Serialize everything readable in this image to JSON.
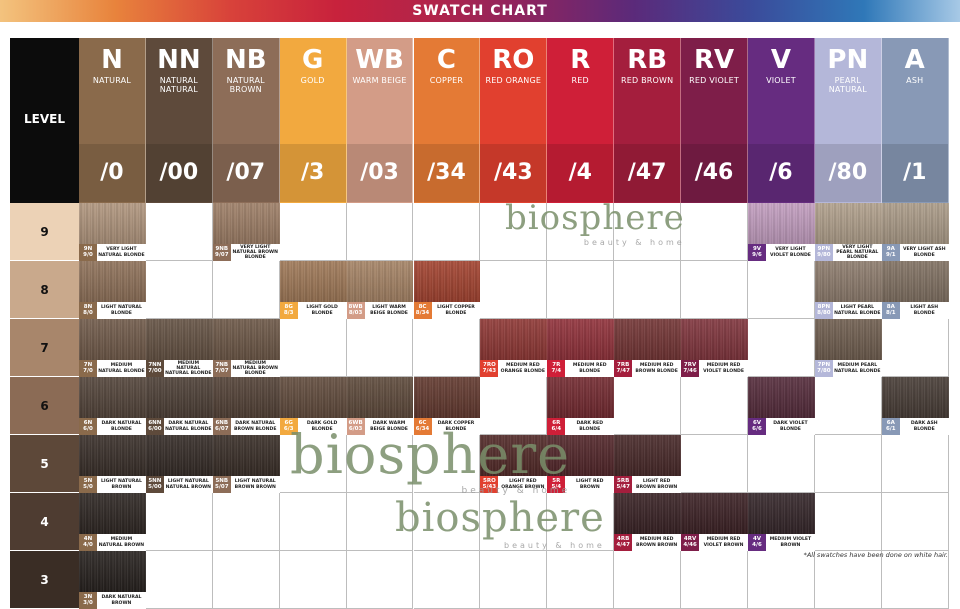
{
  "title": "SWATCH CHART",
  "level_header": "LEVEL",
  "footnote": "*All swatches have been done on white hair.",
  "watermark": {
    "brand": "biosphere",
    "sub": "beauty & home"
  },
  "columns": [
    {
      "code": "N",
      "name": "NATURAL",
      "num": "/0",
      "color": "#8a6a4b"
    },
    {
      "code": "NN",
      "name": "NATURAL NATURAL",
      "num": "/00",
      "color": "#5e4a3b"
    },
    {
      "code": "NB",
      "name": "NATURAL BROWN",
      "num": "/07",
      "color": "#8d6d58"
    },
    {
      "code": "G",
      "name": "GOLD",
      "num": "/3",
      "color": "#f2a93f"
    },
    {
      "code": "WB",
      "name": "WARM BEIGE",
      "num": "/03",
      "color": "#d39c87"
    },
    {
      "code": "C",
      "name": "COPPER",
      "num": "/34",
      "color": "#e47a35"
    },
    {
      "code": "RO",
      "name": "RED ORANGE",
      "num": "/43",
      "color": "#e1402f"
    },
    {
      "code": "R",
      "name": "RED",
      "num": "/4",
      "color": "#cf1f38"
    },
    {
      "code": "RB",
      "name": "RED BROWN",
      "num": "/47",
      "color": "#a41e3d"
    },
    {
      "code": "RV",
      "name": "RED VIOLET",
      "num": "/46",
      "color": "#7e1e49"
    },
    {
      "code": "V",
      "name": "VIOLET",
      "num": "/6",
      "color": "#662c80"
    },
    {
      "code": "PN",
      "name": "PEARL NATURAL",
      "num": "/80",
      "color": "#b4b7d9"
    },
    {
      "code": "A",
      "name": "ASH",
      "num": "/1",
      "color": "#8899b6"
    }
  ],
  "levels": [
    {
      "label": "9",
      "color": "#ecd2b6"
    },
    {
      "label": "8",
      "color": "#c9a98c"
    },
    {
      "label": "7",
      "color": "#a8866b"
    },
    {
      "label": "6",
      "color": "#8b6b55"
    },
    {
      "label": "5",
      "color": "#5d4839"
    },
    {
      "label": "4",
      "color": "#4e3c31"
    },
    {
      "label": "3",
      "color": "#3a2d25"
    }
  ],
  "swatches": [
    {
      "level": 0,
      "col": 0,
      "code": "9N",
      "num": "9/0",
      "label": "VERY LIGHT NATURAL BLONDE",
      "color": "#b09379"
    },
    {
      "level": 0,
      "col": 2,
      "code": "9NB",
      "num": "9/07",
      "label": "VERY LIGHT NATURAL BROWN BLONDE",
      "color": "#9c7a60"
    },
    {
      "level": 0,
      "col": 10,
      "code": "9V",
      "num": "9/6",
      "label": "VERY LIGHT VIOLET BLONDE",
      "color": "#c49cc1"
    },
    {
      "level": 0,
      "col": 11,
      "code": "9PN",
      "num": "9/80",
      "label": "VERY LIGHT PEARL NATURAL BLONDE",
      "color": "#b19f89"
    },
    {
      "level": 0,
      "col": 12,
      "code": "9A",
      "num": "9/1",
      "label": "VERY LIGHT ASH BLONDE",
      "color": "#ab9a85"
    },
    {
      "level": 1,
      "col": 0,
      "code": "8N",
      "num": "8/0",
      "label": "LIGHT NATURAL BLONDE",
      "color": "#8c6c52"
    },
    {
      "level": 1,
      "col": 3,
      "code": "8G",
      "num": "8/3",
      "label": "LIGHT GOLD BLONDE",
      "color": "#9e7450"
    },
    {
      "level": 1,
      "col": 4,
      "code": "8WB",
      "num": "8/03",
      "label": "LIGHT WARM BEIGE BLONDE",
      "color": "#a5805f"
    },
    {
      "level": 1,
      "col": 5,
      "code": "8C",
      "num": "8/34",
      "label": "LIGHT COPPER BLONDE",
      "color": "#a23a25"
    },
    {
      "level": 1,
      "col": 11,
      "code": "8PN",
      "num": "8/80",
      "label": "LIGHT PEARL NATURAL BLONDE",
      "color": "#8b7868"
    },
    {
      "level": 1,
      "col": 12,
      "code": "8A",
      "num": "8/1",
      "label": "LIGHT ASH BLONDE",
      "color": "#7d6c5c"
    },
    {
      "level": 2,
      "col": 0,
      "code": "7N",
      "num": "7/0",
      "label": "MEDIUM NATURAL BLONDE",
      "color": "#6b5341"
    },
    {
      "level": 2,
      "col": 1,
      "code": "7NN",
      "num": "7/00",
      "label": "MEDIUM NATURAL NATURAL BLONDE",
      "color": "#5e4a3a"
    },
    {
      "level": 2,
      "col": 2,
      "code": "7NB",
      "num": "7/07",
      "label": "MEDIUM NATURAL BROWN BLONDE",
      "color": "#67503e"
    },
    {
      "level": 2,
      "col": 6,
      "code": "7RO",
      "num": "7/43",
      "label": "MEDIUM RED ORANGE BLONDE",
      "color": "#8c2d2a"
    },
    {
      "level": 2,
      "col": 7,
      "code": "7R",
      "num": "7/4",
      "label": "MEDIUM RED BLONDE",
      "color": "#8e2630"
    },
    {
      "level": 2,
      "col": 8,
      "code": "7RB",
      "num": "7/47",
      "label": "MEDIUM RED BROWN BLONDE",
      "color": "#6e2a2a"
    },
    {
      "level": 2,
      "col": 9,
      "code": "7RV",
      "num": "7/46",
      "label": "MEDIUM RED VIOLET BLONDE",
      "color": "#7c2a33"
    },
    {
      "level": 2,
      "col": 11,
      "code": "7PN",
      "num": "7/80",
      "label": "MEDIUM PEARL NATURAL BLONDE",
      "color": "#6a5747"
    },
    {
      "level": 3,
      "col": 0,
      "code": "6N",
      "num": "6/0",
      "label": "DARK NATURAL BLONDE",
      "color": "#4b3b30"
    },
    {
      "level": 3,
      "col": 1,
      "code": "6NN",
      "num": "6/00",
      "label": "DARK NATURAL NATURAL BLONDE",
      "color": "#45362c"
    },
    {
      "level": 3,
      "col": 2,
      "code": "6NB",
      "num": "6/07",
      "label": "DARK NATURAL BROWN BLONDE",
      "color": "#4b382c"
    },
    {
      "level": 3,
      "col": 3,
      "code": "6G",
      "num": "6/3",
      "label": "DARK GOLD BLONDE",
      "color": "#5b4333"
    },
    {
      "level": 3,
      "col": 4,
      "code": "6WB",
      "num": "6/03",
      "label": "DARK WARM BEIGE BLONDE",
      "color": "#574131"
    },
    {
      "level": 3,
      "col": 5,
      "code": "6C",
      "num": "6/34",
      "label": "DARK COPPER BLONDE",
      "color": "#5c2f24"
    },
    {
      "level": 3,
      "col": 7,
      "code": "6R",
      "num": "6/4",
      "label": "DARK RED BLONDE",
      "color": "#6e1e25"
    },
    {
      "level": 3,
      "col": 10,
      "code": "6V",
      "num": "6/6",
      "label": "DARK VIOLET BLONDE",
      "color": "#4d2031"
    },
    {
      "level": 3,
      "col": 12,
      "code": "6A",
      "num": "6/1",
      "label": "DARK ASH BLONDE",
      "color": "#3f332c"
    },
    {
      "level": 4,
      "col": 0,
      "code": "5N",
      "num": "5/0",
      "label": "LIGHT NATURAL BROWN",
      "color": "#2f241e"
    },
    {
      "level": 4,
      "col": 1,
      "code": "5NN",
      "num": "5/00",
      "label": "LIGHT NATURAL NATURAL BROWN",
      "color": "#2a201b"
    },
    {
      "level": 4,
      "col": 2,
      "code": "5NB",
      "num": "5/07",
      "label": "LIGHT NATURAL BROWN BROWN",
      "color": "#2f231c"
    },
    {
      "level": 4,
      "col": 6,
      "code": "5RO",
      "num": "5/43",
      "label": "LIGHT RED ORANGE BROWN",
      "color": "#4a1e1c"
    },
    {
      "level": 4,
      "col": 7,
      "code": "5R",
      "num": "5/4",
      "label": "LIGHT RED BROWN",
      "color": "#4a1a1e"
    },
    {
      "level": 4,
      "col": 8,
      "code": "5RB",
      "num": "5/47",
      "label": "LIGHT RED BROWN BROWN",
      "color": "#3f1d1d"
    },
    {
      "level": 5,
      "col": 0,
      "code": "4N",
      "num": "4/0",
      "label": "MEDIUM NATURAL BROWN",
      "color": "#231b17"
    },
    {
      "level": 5,
      "col": 8,
      "code": "4RB",
      "num": "4/47",
      "label": "MEDIUM RED BROWN BROWN",
      "color": "#2f1619"
    },
    {
      "level": 5,
      "col": 9,
      "code": "4RV",
      "num": "4/46",
      "label": "MEDIUM RED VIOLET BROWN",
      "color": "#321519"
    },
    {
      "level": 5,
      "col": 10,
      "code": "4V",
      "num": "4/6",
      "label": "MEDIUM VIOLET BROWN",
      "color": "#2a1a1e"
    },
    {
      "level": 6,
      "col": 0,
      "code": "3N",
      "num": "3/0",
      "label": "DARK NATURAL BROWN",
      "color": "#1b1512"
    }
  ]
}
